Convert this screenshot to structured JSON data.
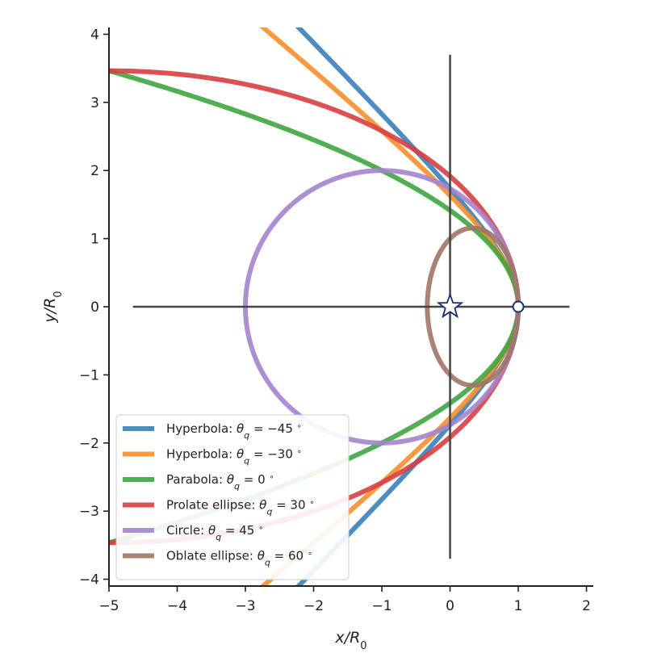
{
  "chart_data": {
    "type": "line",
    "title": "",
    "xlabel": "x/R",
    "xlabel_sub": "0",
    "ylabel": "y/R",
    "ylabel_sub": "0",
    "xlim": [
      -5,
      2.1
    ],
    "ylim": [
      -4.1,
      4.1
    ],
    "xticks": [
      -5,
      -4,
      -3,
      -2,
      -1,
      0,
      1,
      2
    ],
    "yticks": [
      -4,
      -3,
      -2,
      -1,
      0,
      1,
      2,
      3,
      4
    ],
    "xtick_labels": [
      "−5",
      "−4",
      "−3",
      "−2",
      "−1",
      "0",
      "1",
      "2"
    ],
    "ytick_labels": [
      "−4",
      "−3",
      "−2",
      "−1",
      "0",
      "1",
      "2",
      "3",
      "4"
    ],
    "grid": false,
    "legend_position": "bottom-left",
    "reference_lines": {
      "horizontal": {
        "y": 0,
        "x_range": [
          -4.65,
          1.75
        ]
      },
      "vertical": {
        "x": 0,
        "y_range": [
          -3.7,
          3.7
        ]
      }
    },
    "markers": [
      {
        "label": "star",
        "shape": "star",
        "x": 0,
        "y": 0
      },
      {
        "label": "circle",
        "shape": "circle",
        "x": 1,
        "y": 0
      }
    ],
    "series": [
      {
        "name_prefix": "Hyperbola: ",
        "name_math": "θq = −45°",
        "sym": "θ",
        "sub": "q",
        "eq": " = −45 ",
        "deg": "∘",
        "color": "#3a7fb8",
        "conic": "hyperbola",
        "a": 1,
        "b": 1,
        "center_x": 2,
        "direction": -1
      },
      {
        "name_prefix": "Hyperbola: ",
        "name_math": "θq = −30°",
        "sym": "θ",
        "sub": "q",
        "eq": " = −30 ",
        "deg": "∘",
        "color": "#fb8e2b",
        "conic": "hyperbola",
        "a": 1.5,
        "b": 1.2247,
        "center_x": 2.5,
        "direction": -1
      },
      {
        "name_prefix": "Parabola: ",
        "name_math": "θq = 0°",
        "sym": "θ",
        "sub": "q",
        "eq": " = 0 ",
        "deg": "∘",
        "color": "#3fa53f",
        "conic": "parabola",
        "vertex_x": 1,
        "focal": 0.5
      },
      {
        "name_prefix": "Prolate ellipse: ",
        "name_math": "θq = 30°",
        "sym": "θ",
        "sub": "q",
        "eq": " = 30 ",
        "deg": "∘",
        "color": "#d83e3f",
        "conic": "ellipse",
        "a": 6,
        "b": 3.4641,
        "center_x": -5
      },
      {
        "name_prefix": "Circle: ",
        "name_math": "θq = 45°",
        "sym": "θ",
        "sub": "q",
        "eq": " = 45 ",
        "deg": "∘",
        "color": "#a484cc",
        "conic": "ellipse",
        "a": 2,
        "b": 2,
        "center_x": -1
      },
      {
        "name_prefix": "Oblate ellipse: ",
        "name_math": "θq = 60°",
        "sym": "θ",
        "sub": "q",
        "eq": " = 60 ",
        "deg": "∘",
        "color": "#a07566",
        "conic": "ellipse",
        "a": 0.6667,
        "b": 1.1547,
        "center_x": 0.3333
      }
    ]
  }
}
